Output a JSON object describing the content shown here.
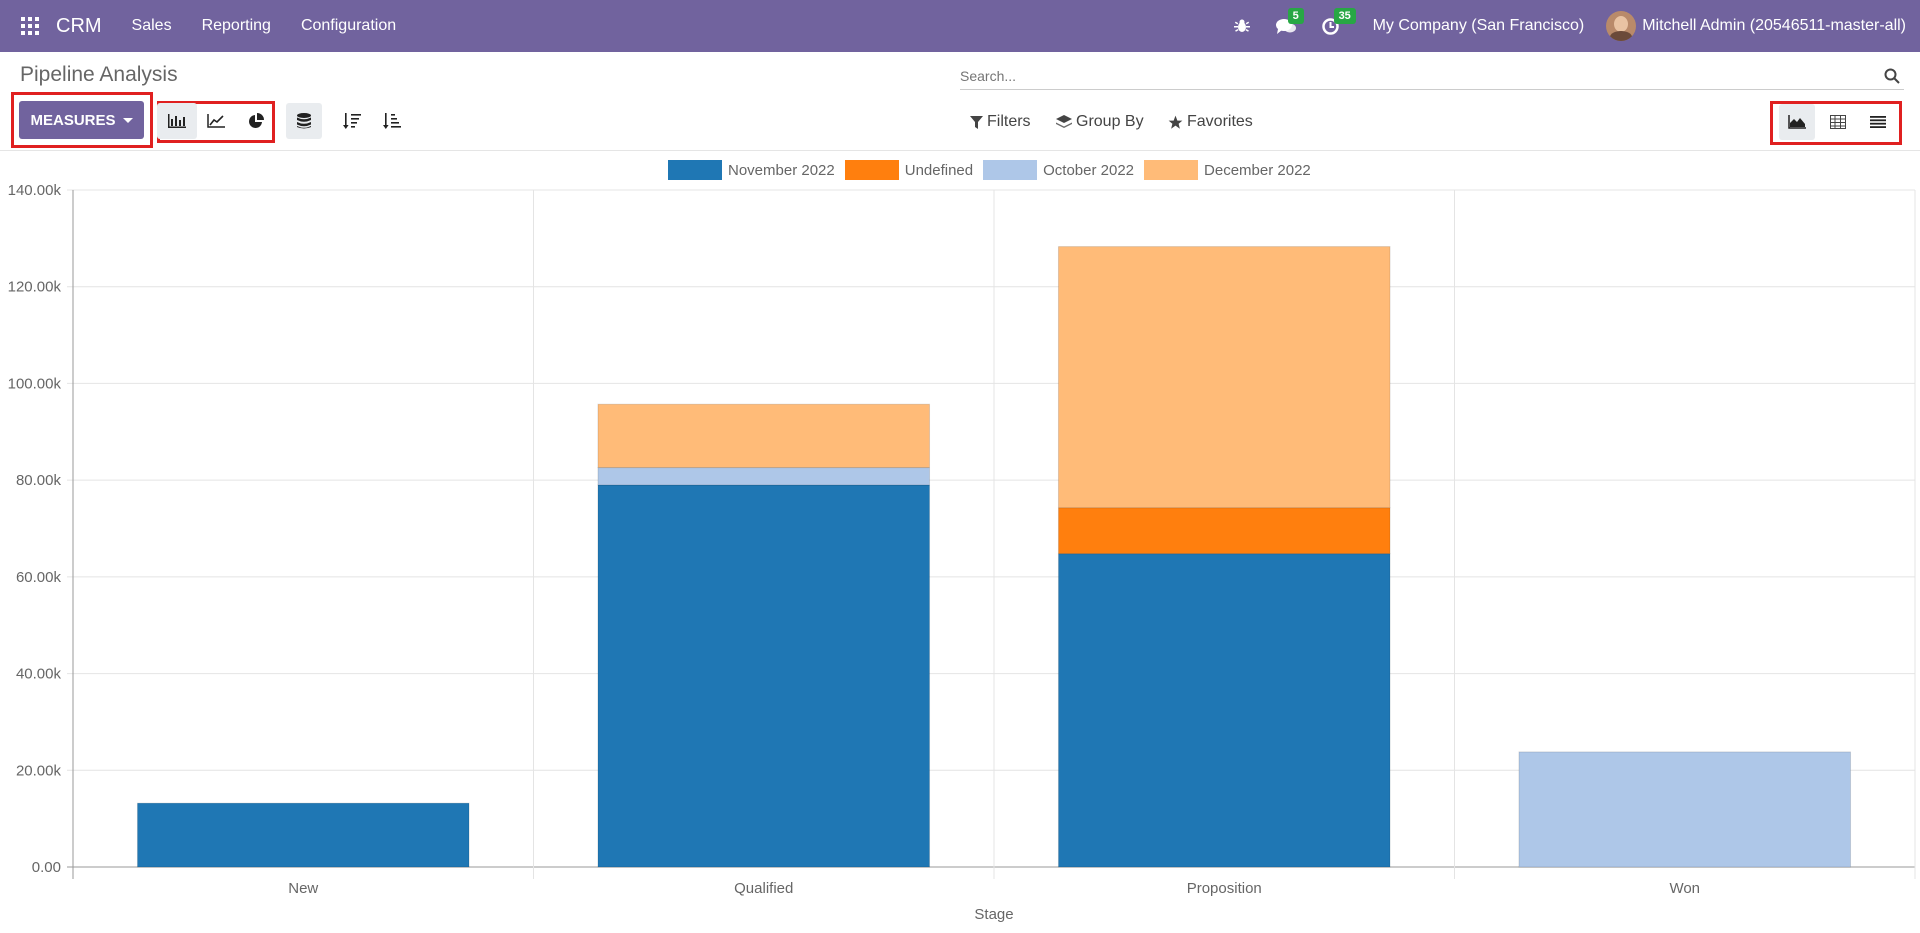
{
  "navbar": {
    "brand": "CRM",
    "menus": [
      "Sales",
      "Reporting",
      "Configuration"
    ],
    "messages_badge": "5",
    "activities_badge": "35",
    "company": "My Company (San Francisco)",
    "user": "Mitchell Admin (20546511-master-all)"
  },
  "control_panel": {
    "title": "Pipeline Analysis",
    "search_placeholder": "Search...",
    "measures_label": "MEASURES",
    "filters_label": "Filters",
    "groupby_label": "Group By",
    "favorites_label": "Favorites"
  },
  "chart_data": {
    "type": "bar",
    "stacked": true,
    "categories": [
      "New",
      "Qualified",
      "Proposition",
      "Won"
    ],
    "series": [
      {
        "name": "November 2022",
        "color": "#1f77b4",
        "values": [
          13200,
          79000,
          64800,
          0
        ]
      },
      {
        "name": "Undefined",
        "color": "#ff7f0e",
        "values": [
          0,
          0,
          9500,
          0
        ]
      },
      {
        "name": "October 2022",
        "color": "#aec7e8",
        "values": [
          0,
          3600,
          0,
          23800
        ]
      },
      {
        "name": "December 2022",
        "color": "#ffbb78",
        "values": [
          0,
          13100,
          54000,
          0
        ]
      }
    ],
    "xlabel": "Stage",
    "ylabel": "",
    "ylim": [
      0,
      140000
    ],
    "yticks": [
      "0.00",
      "20.00k",
      "40.00k",
      "60.00k",
      "80.00k",
      "100.00k",
      "120.00k",
      "140.00k"
    ],
    "grid": true,
    "legend": "top-center"
  }
}
